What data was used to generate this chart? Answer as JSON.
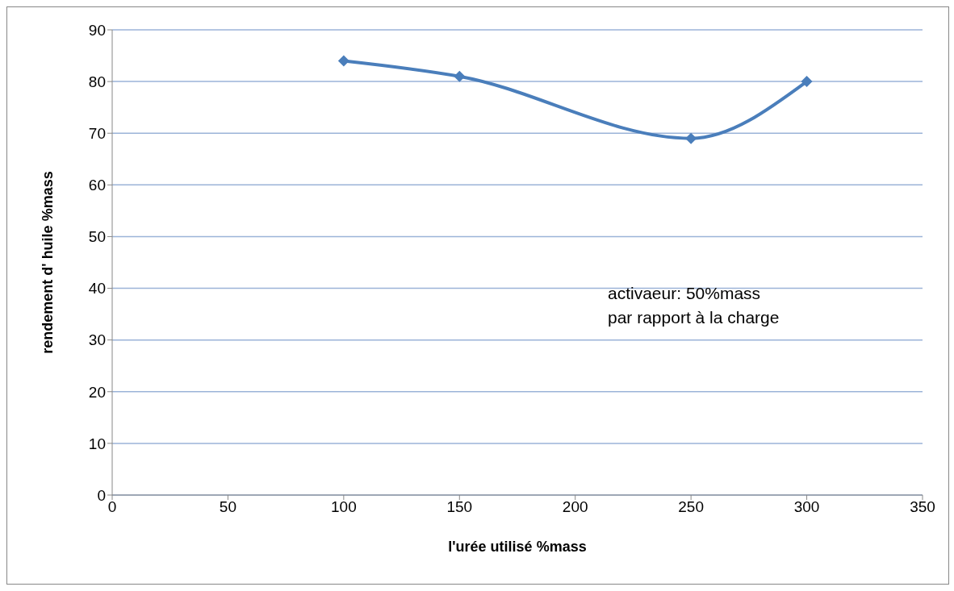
{
  "chart_data": {
    "type": "line",
    "xlabel": "l'urée utilisé %mass",
    "ylabel": "rendement d' huile %mass",
    "x": [
      100,
      150,
      250,
      300
    ],
    "series": [
      {
        "color": "#4a7ebb",
        "values": [
          84,
          81,
          69,
          80
        ]
      }
    ],
    "xlim": [
      0,
      350
    ],
    "xticks": [
      0,
      50,
      100,
      150,
      200,
      250,
      300,
      350
    ],
    "ylim": [
      0,
      90
    ],
    "yticks": [
      0,
      10,
      20,
      30,
      40,
      50,
      60,
      70,
      80,
      90
    ],
    "grid": "y",
    "legend": false,
    "marker": "diamond",
    "line_style": "solid",
    "annotations": [
      "activaeur: 50%mass\npar rapport à la charge"
    ]
  }
}
